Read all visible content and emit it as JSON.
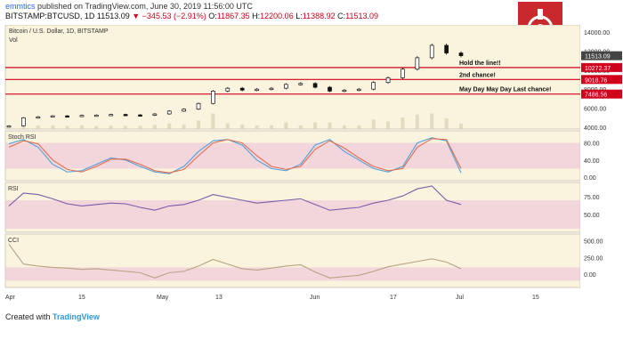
{
  "header": {
    "user": "emmtics",
    "published": "published on TradingView.com, June 30, 2019 11:56:00 UTC",
    "symbol": "BITSTAMP:BTCUSD, 1D",
    "last": "11513.09",
    "change": "▼ −345.53 (−2.91%)",
    "o_label": "O:",
    "o_val": "11867.35",
    "h_label": "H:",
    "h_val": "12200.06",
    "l_label": "L:",
    "l_val": "11388.92",
    "c_label": "C:",
    "c_val": "11513.09"
  },
  "footer": {
    "created": "Created with",
    "brand": "TradingView"
  },
  "colors": {
    "bg": "#faf3dd",
    "candle_up": "#ffffff",
    "candle_down": "#111111",
    "hline": "#d0021b",
    "stoch_k": "#4aa3df",
    "stoch_d": "#e86a4a",
    "osc_line": "#7b5ea8",
    "cci_line": "#b8a382",
    "band": "#f0c8dc"
  },
  "chart_data": [
    {
      "type": "line",
      "title": "Bitcoin / U.S. Dollar, 1D, BITSTAMP",
      "subtitle": "Vol",
      "x": [
        "Apr 1",
        "Apr 4",
        "Apr 7",
        "Apr 10",
        "Apr 13",
        "Apr 16",
        "Apr 19",
        "Apr 22",
        "Apr 25",
        "Apr 28",
        "May 1",
        "May 4",
        "May 7",
        "May 10",
        "May 13",
        "May 16",
        "May 19",
        "May 22",
        "May 25",
        "May 28",
        "May 31",
        "Jun 3",
        "Jun 6",
        "Jun 9",
        "Jun 12",
        "Jun 15",
        "Jun 18",
        "Jun 21",
        "Jun 24",
        "Jun 26",
        "Jun 28",
        "Jun 30"
      ],
      "close": [
        4150,
        5000,
        5100,
        5200,
        5150,
        5250,
        5280,
        5350,
        5300,
        5250,
        5400,
        5700,
        5900,
        6500,
        7800,
        8100,
        7900,
        8000,
        8100,
        8500,
        8600,
        8200,
        7800,
        7900,
        8000,
        8700,
        9200,
        10100,
        11300,
        12600,
        11800,
        11513
      ],
      "ylim": [
        4000,
        14000
      ],
      "ylabel_ticks": [
        "14000.00",
        "12000.00",
        "10000.00",
        "8000.00",
        "6000.00",
        "4000.00"
      ],
      "xticks": [
        "Apr",
        "15",
        "May",
        "13",
        "Jun",
        "17",
        "Jul",
        "15"
      ],
      "price_labels": [
        "11513.09",
        "10272.37",
        "9018.76",
        "7486.56"
      ],
      "horizontal_lines": [
        {
          "value": 10272.37,
          "label": "Hold the line!!"
        },
        {
          "value": 9018.76,
          "label": "2nd chance!"
        },
        {
          "value": 7486.56,
          "label": "May Day May Day Last chance!"
        }
      ]
    },
    {
      "type": "line",
      "title": "Stoch RSI",
      "series": [
        {
          "name": "K",
          "values": [
            78,
            88,
            70,
            30,
            12,
            15,
            30,
            45,
            40,
            25,
            12,
            8,
            25,
            60,
            85,
            88,
            75,
            40,
            20,
            15,
            30,
            75,
            88,
            60,
            40,
            20,
            12,
            25,
            80,
            92,
            85,
            10
          ]
        },
        {
          "name": "D",
          "values": [
            70,
            85,
            78,
            40,
            18,
            12,
            25,
            42,
            42,
            30,
            15,
            10,
            18,
            50,
            80,
            88,
            80,
            50,
            25,
            18,
            25,
            65,
            85,
            68,
            45,
            25,
            15,
            20,
            70,
            90,
            88,
            20
          ]
        }
      ],
      "ylim": [
        0,
        100
      ],
      "yticks": [
        "80.00",
        "40.00",
        "0.00"
      ]
    },
    {
      "type": "line",
      "title": "RSI",
      "values": [
        62,
        80,
        78,
        72,
        65,
        62,
        64,
        66,
        65,
        60,
        56,
        62,
        64,
        70,
        78,
        74,
        70,
        66,
        68,
        70,
        72,
        64,
        56,
        58,
        60,
        66,
        70,
        76,
        86,
        90,
        70,
        64
      ],
      "ylim": [
        30,
        90
      ],
      "yticks": [
        "75.00",
        "50.00"
      ]
    },
    {
      "type": "line",
      "title": "CCI",
      "values": [
        450,
        150,
        120,
        100,
        90,
        70,
        80,
        60,
        40,
        20,
        -60,
        20,
        40,
        120,
        220,
        150,
        80,
        60,
        90,
        120,
        140,
        30,
        -60,
        -40,
        -20,
        40,
        110,
        150,
        190,
        230,
        180,
        80
      ],
      "ylim": [
        -150,
        550
      ],
      "yticks": [
        "500.00",
        "250.00",
        "0.00"
      ]
    }
  ]
}
